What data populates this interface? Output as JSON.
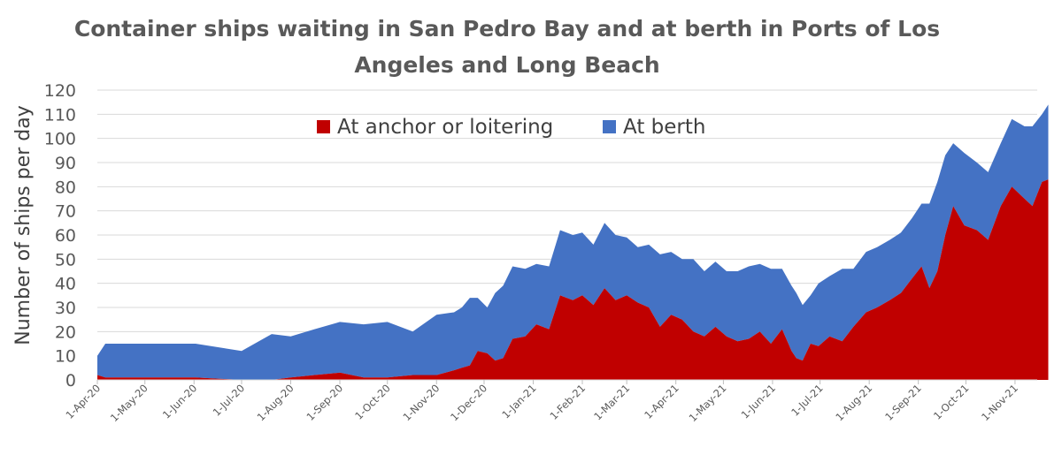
{
  "chart_data": {
    "type": "area",
    "stacked": true,
    "title_line1": "Container ships waiting in San Pedro Bay and at berth in Ports of Los",
    "title_line2": "Angeles and Long Beach",
    "ylabel": "Number of ships per day",
    "xlabel": "",
    "ylim": [
      0,
      120
    ],
    "yticks": [
      0,
      10,
      20,
      30,
      40,
      50,
      60,
      70,
      80,
      90,
      100,
      110,
      120
    ],
    "grid": true,
    "legend_position": "top-center",
    "x_start": "1-Apr-20",
    "x_end": "15-Nov-21",
    "x_tick_labels": [
      "1-Apr-20",
      "1-May-20",
      "1-Jun-20",
      "1-Jul-20",
      "1-Aug-20",
      "1-Sep-20",
      "1-Oct-20",
      "1-Nov-20",
      "1-Dec-20",
      "1-Jan-21",
      "1-Feb-21",
      "1-Mar-21",
      "1-Apr-21",
      "1-May-21",
      "1-Jun-21",
      "1-Jul-21",
      "1-Aug-21",
      "1-Sep-21",
      "1-Oct-21",
      "1-Nov-21"
    ],
    "series": [
      {
        "name": "At anchor or loitering",
        "color": "#C00000",
        "days": [
          0,
          5,
          30,
          62,
          91,
          110,
          122,
          137,
          153,
          168,
          183,
          199,
          214,
          225,
          230,
          235,
          240,
          246,
          251,
          256,
          262,
          270,
          277,
          285,
          292,
          300,
          306,
          313,
          320,
          327,
          334,
          341,
          348,
          355,
          362,
          369,
          376,
          383,
          390,
          397,
          404,
          411,
          418,
          425,
          432,
          438,
          441,
          445,
          450,
          455,
          462,
          470,
          477,
          485,
          492,
          500,
          507,
          514,
          520,
          525,
          530,
          535,
          540,
          547,
          555,
          562,
          570,
          577,
          585,
          590,
          596,
          600
        ],
        "values": [
          2,
          1,
          1,
          1,
          0,
          0,
          1,
          2,
          3,
          1,
          1,
          2,
          2,
          4,
          5,
          6,
          12,
          11,
          8,
          9,
          17,
          18,
          23,
          21,
          35,
          33,
          35,
          31,
          38,
          33,
          35,
          32,
          30,
          22,
          27,
          25,
          20,
          18,
          22,
          18,
          16,
          17,
          20,
          15,
          21,
          12,
          9,
          8,
          15,
          14,
          18,
          16,
          22,
          28,
          30,
          33,
          36,
          42,
          47,
          38,
          45,
          60,
          72,
          64,
          62,
          58,
          72,
          80,
          75,
          72,
          82,
          83
        ]
      },
      {
        "name": "At berth",
        "color": "#4472C4",
        "days": [
          0,
          5,
          30,
          62,
          91,
          110,
          122,
          137,
          153,
          168,
          183,
          199,
          214,
          225,
          230,
          235,
          240,
          246,
          251,
          256,
          262,
          270,
          277,
          285,
          292,
          300,
          306,
          313,
          320,
          327,
          334,
          341,
          348,
          355,
          362,
          369,
          376,
          383,
          390,
          397,
          404,
          411,
          418,
          425,
          432,
          438,
          441,
          445,
          450,
          455,
          462,
          470,
          477,
          485,
          492,
          500,
          507,
          514,
          520,
          525,
          530,
          535,
          540,
          547,
          555,
          562,
          570,
          577,
          585,
          590,
          596,
          600
        ],
        "values": [
          8,
          14,
          14,
          14,
          12,
          19,
          17,
          19,
          21,
          22,
          23,
          18,
          25,
          24,
          25,
          28,
          22,
          19,
          28,
          30,
          30,
          28,
          25,
          26,
          27,
          27,
          26,
          25,
          27,
          27,
          24,
          23,
          26,
          30,
          26,
          25,
          30,
          27,
          27,
          27,
          29,
          30,
          28,
          31,
          25,
          27,
          27,
          23,
          20,
          26,
          25,
          30,
          24,
          25,
          25,
          25,
          25,
          25,
          26,
          35,
          37,
          33,
          26,
          30,
          28,
          28,
          26,
          28,
          30,
          33,
          28,
          31
        ]
      }
    ]
  }
}
